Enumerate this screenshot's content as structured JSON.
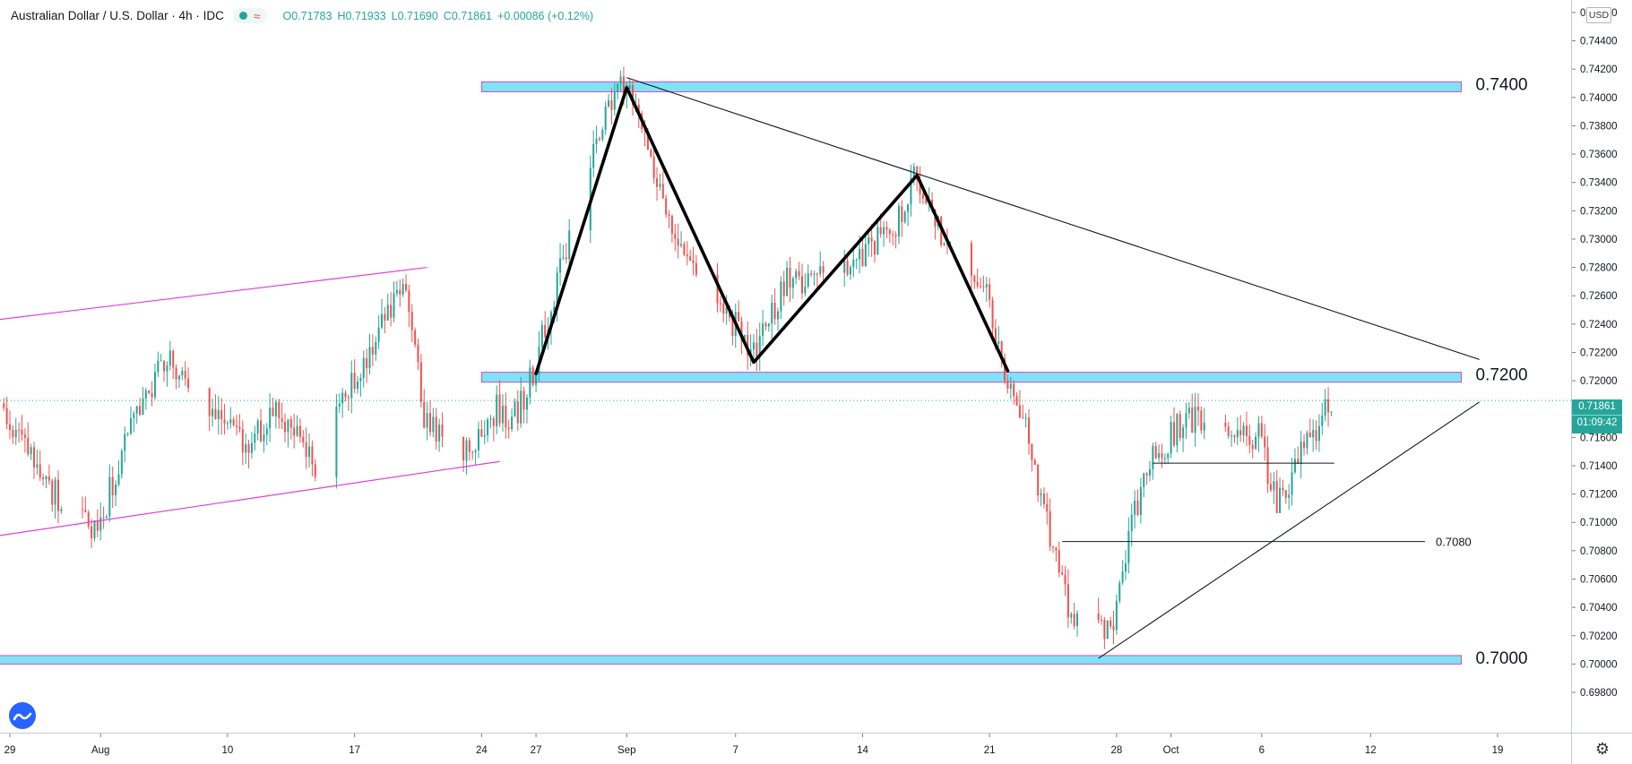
{
  "header": {
    "symbol_title": "Australian Dollar / U.S. Dollar · 4h · IDC",
    "open": "O0.71783",
    "high": "H0.71933",
    "low": "L0.71690",
    "close": "C0.71861",
    "change": "+0.00086 (+0.12%)"
  },
  "price_axis": {
    "currency": "USD",
    "ticks": [
      "0.74600",
      "0.74400",
      "0.74200",
      "0.74000",
      "0.73800",
      "0.73600",
      "0.73400",
      "0.73200",
      "0.73000",
      "0.72800",
      "0.72600",
      "0.72400",
      "0.72200",
      "0.72000",
      "0.71600",
      "0.71400",
      "0.71200",
      "0.71000",
      "0.70800",
      "0.70600",
      "0.70400",
      "0.70200",
      "0.70000",
      "0.69800"
    ],
    "last_price": "0.71861",
    "countdown": "01:09:42"
  },
  "time_axis": {
    "labels": [
      "29",
      "Aug",
      "10",
      "17",
      "24",
      "27",
      "Sep",
      "7",
      "14",
      "21",
      "28",
      "Oct",
      "6",
      "12",
      "19"
    ]
  },
  "annotations": {
    "zone_top_label": "0.7400",
    "zone_mid_label": "0.7200",
    "zone_bottom_label": "0.7000",
    "support_line_label": "0.7080"
  },
  "colors": {
    "bull": "#26a69a",
    "bear": "#ef5350",
    "zone_fill": "#7fe3f5",
    "zone_border": "#d649c2",
    "channel": "#e040d8",
    "trendline": "#131722"
  },
  "chart_data": {
    "type": "candlestick",
    "title": "Australian Dollar / U.S. Dollar · 4h · IDC",
    "ylim": [
      0.6968,
      0.7465
    ],
    "x_range": [
      "2020-07-29",
      "2020-10-19"
    ],
    "x_ticks": [
      {
        "date": "2020-07-29",
        "label": "29"
      },
      {
        "date": "2020-08-03",
        "label": "Aug"
      },
      {
        "date": "2020-08-10",
        "label": "10"
      },
      {
        "date": "2020-08-17",
        "label": "17"
      },
      {
        "date": "2020-08-24",
        "label": "24"
      },
      {
        "date": "2020-08-27",
        "label": "27"
      },
      {
        "date": "2020-09-01",
        "label": "Sep"
      },
      {
        "date": "2020-09-07",
        "label": "7"
      },
      {
        "date": "2020-09-14",
        "label": "14"
      },
      {
        "date": "2020-09-21",
        "label": "21"
      },
      {
        "date": "2020-09-28",
        "label": "28"
      },
      {
        "date": "2020-10-01",
        "label": "Oct"
      },
      {
        "date": "2020-10-06",
        "label": "6"
      },
      {
        "date": "2020-10-12",
        "label": "12"
      },
      {
        "date": "2020-10-19",
        "label": "19"
      }
    ],
    "price_path": [
      [
        "2020-07-27",
        0.7185
      ],
      [
        "2020-07-29",
        0.7172
      ],
      [
        "2020-07-31",
        0.7128
      ],
      [
        "2020-08-03",
        0.7092
      ],
      [
        "2020-08-05",
        0.718
      ],
      [
        "2020-08-07",
        0.7215
      ],
      [
        "2020-08-09",
        0.718
      ],
      [
        "2020-08-11",
        0.7155
      ],
      [
        "2020-08-13",
        0.718
      ],
      [
        "2020-08-15",
        0.714
      ],
      [
        "2020-08-17",
        0.72
      ],
      [
        "2020-08-19",
        0.7245
      ],
      [
        "2020-08-20",
        0.727
      ],
      [
        "2020-08-21",
        0.7175
      ],
      [
        "2020-08-23",
        0.7148
      ],
      [
        "2020-08-25",
        0.718
      ],
      [
        "2020-08-26",
        0.7175
      ],
      [
        "2020-08-27",
        0.7205
      ],
      [
        "2020-08-29",
        0.73
      ],
      [
        "2020-08-31",
        0.7385
      ],
      [
        "2020-09-01",
        0.741
      ],
      [
        "2020-09-02",
        0.738
      ],
      [
        "2020-09-04",
        0.729
      ],
      [
        "2020-09-06",
        0.727
      ],
      [
        "2020-09-08",
        0.7215
      ],
      [
        "2020-09-10",
        0.727
      ],
      [
        "2020-09-12",
        0.727
      ],
      [
        "2020-09-14",
        0.7285
      ],
      [
        "2020-09-16",
        0.731
      ],
      [
        "2020-09-17",
        0.7345
      ],
      [
        "2020-09-19",
        0.729
      ],
      [
        "2020-09-21",
        0.727
      ],
      [
        "2020-09-22",
        0.72
      ],
      [
        "2020-09-23",
        0.7175
      ],
      [
        "2020-09-24",
        0.712
      ],
      [
        "2020-09-25",
        0.706
      ],
      [
        "2020-09-26",
        0.7025
      ],
      [
        "2020-09-28",
        0.703
      ],
      [
        "2020-09-29",
        0.71
      ],
      [
        "2020-09-30",
        0.714
      ],
      [
        "2020-10-02",
        0.7175
      ],
      [
        "2020-10-04",
        0.7165
      ],
      [
        "2020-10-06",
        0.716
      ],
      [
        "2020-10-07",
        0.711
      ],
      [
        "2020-10-08",
        0.714
      ],
      [
        "2020-10-10",
        0.7186
      ]
    ],
    "last_close": 0.71861,
    "horizontal_zones": [
      {
        "label": "0.7400",
        "low": 0.7404,
        "high": 0.7411,
        "from": "2020-08-24",
        "to": "2020-10-17"
      },
      {
        "label": "0.7200",
        "low": 0.7199,
        "high": 0.7206,
        "from": "2020-08-24",
        "to": "2020-10-17"
      },
      {
        "label": "0.7000",
        "low": 0.7,
        "high": 0.7006,
        "from": "2020-07-27",
        "to": "2020-10-17"
      }
    ],
    "horizontal_lines": [
      {
        "label": "0.7080",
        "value": 0.70865,
        "from": "2020-09-25",
        "to": "2020-10-15"
      },
      {
        "label": "",
        "value": 0.71418,
        "from": "2020-09-30",
        "to": "2020-10-10"
      }
    ],
    "channel_lines": [
      {
        "from": [
          "2020-07-27",
          0.7241
        ],
        "to": [
          "2020-08-21",
          0.728
        ]
      },
      {
        "from": [
          "2020-07-27",
          0.7088
        ],
        "to": [
          "2020-08-25",
          0.7143
        ]
      }
    ],
    "trend_lines": [
      {
        "from": [
          "2020-09-01",
          0.7414
        ],
        "to": [
          "2020-10-18",
          0.7215
        ]
      },
      {
        "from": [
          "2020-09-27",
          0.7004
        ],
        "to": [
          "2020-10-18",
          0.7185
        ]
      }
    ],
    "zigzag_pattern": [
      [
        "2020-08-27",
        0.7205
      ],
      [
        "2020-09-01",
        0.7407
      ],
      [
        "2020-09-08",
        0.7213
      ],
      [
        "2020-09-17",
        0.7345
      ],
      [
        "2020-09-22",
        0.7207
      ]
    ]
  }
}
